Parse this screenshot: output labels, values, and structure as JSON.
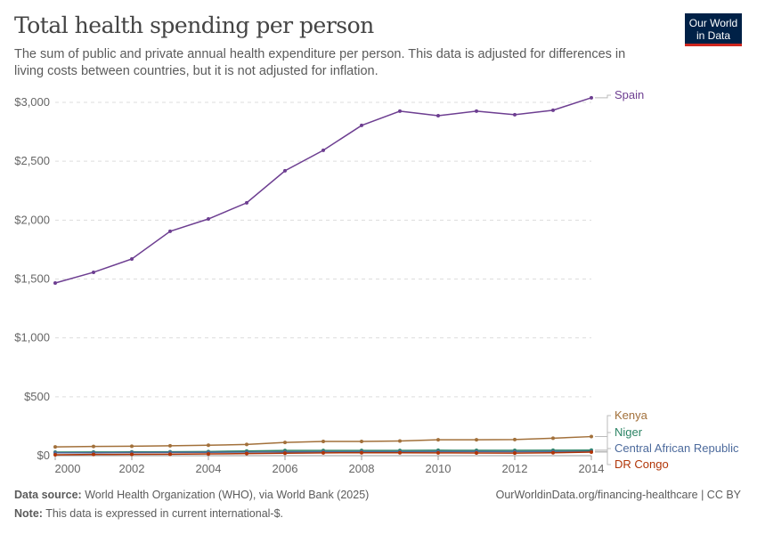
{
  "header": {
    "title": "Total health spending per person",
    "subtitle": "The sum of public and private annual health expenditure per person. This data is adjusted for differences in living costs between countries, but it is not adjusted for inflation.",
    "logo": "Our World in Data"
  },
  "footer": {
    "source_label": "Data source:",
    "source": "World Health Organization (WHO), via World Bank (2025)",
    "url": "OurWorldinData.org/financing-healthcare | CC BY",
    "note_label": "Note:",
    "note": "This data is expressed in current international-$."
  },
  "chart_data": {
    "type": "line",
    "title": "Total health spending per person",
    "x": [
      2000,
      2001,
      2002,
      2003,
      2004,
      2005,
      2006,
      2007,
      2008,
      2009,
      2010,
      2011,
      2012,
      2013,
      2014
    ],
    "xlim": [
      2000,
      2014
    ],
    "xticks": [
      "2000",
      "2002",
      "2004",
      "2006",
      "2008",
      "2010",
      "2012",
      "2014"
    ],
    "ylim": [
      0,
      3000
    ],
    "yticks": [
      {
        "v": 0,
        "label": "$0"
      },
      {
        "v": 500,
        "label": "$500"
      },
      {
        "v": 1000,
        "label": "$1,000"
      },
      {
        "v": 1500,
        "label": "$1,500"
      },
      {
        "v": 2000,
        "label": "$2,000"
      },
      {
        "v": 2500,
        "label": "$2,500"
      },
      {
        "v": 3000,
        "label": "$3,000"
      }
    ],
    "grid": "horizontal dashed",
    "legend": "right, line-end labels",
    "series": [
      {
        "name": "Spain",
        "color": "#6d3e91",
        "values": [
          1466,
          1557,
          1670,
          1905,
          2010,
          2147,
          2419,
          2593,
          2804,
          2925,
          2887,
          2925,
          2895,
          2933,
          3039
        ]
      },
      {
        "name": "Kenya",
        "color": "#a2703a",
        "values": [
          75,
          78,
          80,
          84,
          89,
          95,
          112,
          121,
          121,
          125,
          135,
          135,
          137,
          148,
          162
        ]
      },
      {
        "name": "Niger",
        "color": "#2c8465",
        "values": [
          30,
          31,
          32,
          33,
          35,
          40,
          44,
          44,
          44,
          44,
          46,
          45,
          45,
          46,
          47
        ]
      },
      {
        "name": "Central African Republic",
        "color": "#4c6a9c",
        "values": [
          25,
          25,
          26,
          27,
          28,
          30,
          32,
          33,
          34,
          34,
          35,
          35,
          34,
          35,
          36
        ]
      },
      {
        "name": "DR Congo",
        "color": "#b13507",
        "values": [
          8,
          10,
          11,
          12,
          15,
          18,
          21,
          24,
          25,
          25,
          24,
          23,
          22,
          25,
          30
        ]
      }
    ]
  }
}
